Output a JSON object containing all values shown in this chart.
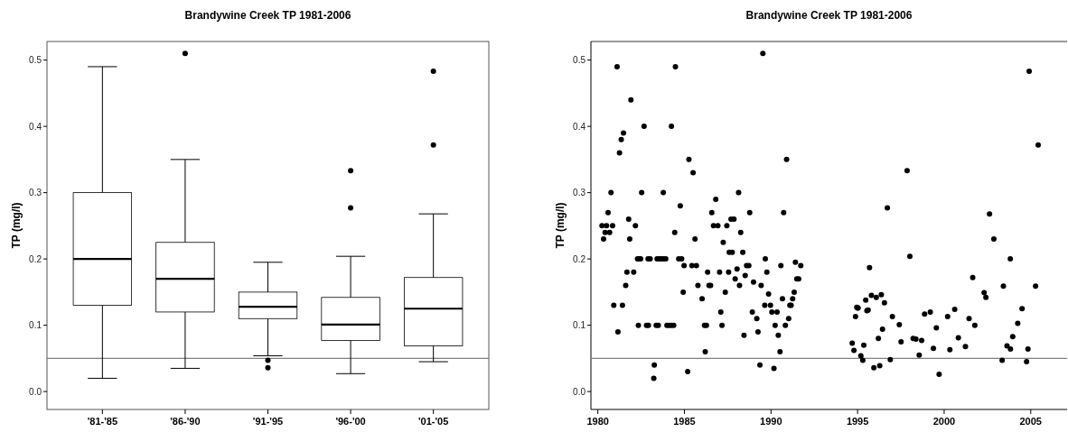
{
  "chart_data": [
    {
      "type": "box",
      "title": "Brandywine Creek TP 1981-2006",
      "ylabel": "TP (mg/l)",
      "categories": [
        "'81-'85",
        "'86-'90",
        "'91-'95",
        "'96-'00",
        "'01-'05"
      ],
      "boxes": [
        {
          "low": 0.02,
          "q1": 0.13,
          "median": 0.2,
          "q3": 0.3,
          "high": 0.49
        },
        {
          "low": 0.035,
          "q1": 0.12,
          "median": 0.17,
          "q3": 0.225,
          "high": 0.35,
          "outliers": [
            0.51
          ]
        },
        {
          "low": 0.054,
          "q1": 0.11,
          "median": 0.128,
          "q3": 0.15,
          "high": 0.195,
          "outliers": [
            0.047,
            0.036
          ]
        },
        {
          "low": 0.027,
          "q1": 0.077,
          "median": 0.101,
          "q3": 0.142,
          "high": 0.204,
          "outliers": [
            0.277,
            0.333
          ]
        },
        {
          "low": 0.045,
          "q1": 0.069,
          "median": 0.125,
          "q3": 0.172,
          "high": 0.268,
          "outliers": [
            0.372,
            0.483
          ]
        }
      ],
      "ylim": [
        -0.027,
        0.528
      ],
      "yticks": [
        {
          "value": 0,
          "label": "0.0"
        },
        0.1,
        0.2,
        0.3,
        0.4,
        0.5
      ],
      "ref_lines": [
        {
          "axis": "y",
          "value": 0.05,
          "color": "#808080"
        }
      ]
    },
    {
      "type": "scatter",
      "title": "Brandywine Creek TP 1981-2006",
      "ylabel": "TP (mg/l)",
      "marker": "circle",
      "x": [
        1980.24,
        1980.33,
        1980.42,
        1980.5,
        1980.59,
        1980.68,
        1980.76,
        1980.85,
        1980.92,
        1981.11,
        1981.16,
        1981.25,
        1981.35,
        1981.42,
        1981.48,
        1981.61,
        1981.68,
        1981.78,
        1981.84,
        1981.91,
        1982.07,
        1982.17,
        1982.29,
        1982.34,
        1982.38,
        1982.47,
        1982.53,
        1982.67,
        1982.81,
        1982.9,
        1982.92,
        1983.02,
        1983.23,
        1983.26,
        1983.37,
        1983.42,
        1983.49,
        1983.54,
        1983.66,
        1983.78,
        1983.78,
        1983.92,
        1983.99,
        1984.11,
        1984.24,
        1984.25,
        1984.38,
        1984.44,
        1984.48,
        1984.67,
        1984.76,
        1984.84,
        1984.93,
        1984.98,
        1985.19,
        1985.26,
        1985.43,
        1985.5,
        1985.61,
        1985.69,
        1985.78,
        1986.02,
        1986.16,
        1986.2,
        1986.27,
        1986.34,
        1986.42,
        1986.51,
        1986.58,
        1986.68,
        1986.81,
        1986.93,
        1987.03,
        1987.1,
        1987.17,
        1987.24,
        1987.36,
        1987.45,
        1987.55,
        1987.59,
        1987.69,
        1987.76,
        1987.86,
        1987.93,
        1988.04,
        1988.13,
        1988.18,
        1988.25,
        1988.37,
        1988.44,
        1988.51,
        1988.59,
        1988.72,
        1988.77,
        1988.92,
        1988.99,
        1989.18,
        1989.25,
        1989.36,
        1989.43,
        1989.53,
        1989.64,
        1989.67,
        1989.76,
        1989.86,
        1989.97,
        1990.05,
        1990.17,
        1990.24,
        1990.35,
        1990.42,
        1990.52,
        1990.57,
        1990.66,
        1990.73,
        1990.83,
        1990.9,
        1991.02,
        1991.09,
        1991.16,
        1991.25,
        1991.34,
        1991.41,
        1991.49,
        1991.6,
        1991.72,
        1994.69,
        1994.79,
        1994.88,
        1994.95,
        1995.0,
        1995.03,
        1995.19,
        1995.3,
        1995.36,
        1995.47,
        1995.54,
        1995.61,
        1995.69,
        1995.8,
        1995.94,
        1996.08,
        1996.2,
        1996.28,
        1996.37,
        1996.44,
        1996.55,
        1996.72,
        1996.89,
        1997.01,
        1997.41,
        1997.51,
        1997.86,
        1998.02,
        1998.21,
        1998.37,
        1998.56,
        1998.7,
        1998.87,
        1999.2,
        1999.38,
        1999.55,
        1999.71,
        2000.2,
        2000.33,
        2000.61,
        2000.82,
        2001.23,
        2001.44,
        2001.65,
        2001.77,
        2002.31,
        2002.41,
        2002.62,
        2002.87,
        2003.35,
        2003.42,
        2003.63,
        2003.82,
        2003.83,
        2003.96,
        2004.25,
        2004.5,
        2004.76,
        2004.84,
        2004.91,
        2005.28,
        2005.43
      ],
      "series": [
        {
          "color": "#000000",
          "values": [
            0.25,
            0.23,
            0.24,
            0.25,
            0.27,
            0.24,
            0.3,
            0.25,
            0.13,
            0.49,
            0.09,
            0.36,
            0.38,
            0.13,
            0.39,
            0.16,
            0.18,
            0.26,
            0.23,
            0.44,
            0.18,
            0.25,
            0.2,
            0.1,
            0.2,
            0.2,
            0.3,
            0.4,
            0.1,
            0.2,
            0.1,
            0.2,
            0.02,
            0.04,
            0.1,
            0.2,
            0.1,
            0.2,
            0.2,
            0.2,
            0.3,
            0.2,
            0.1,
            0.1,
            0.1,
            0.4,
            0.1,
            0.24,
            0.49,
            0.2,
            0.28,
            0.2,
            0.15,
            0.19,
            0.03,
            0.35,
            0.19,
            0.33,
            0.23,
            0.19,
            0.16,
            0.14,
            0.1,
            0.06,
            0.1,
            0.18,
            0.16,
            0.16,
            0.27,
            0.25,
            0.29,
            0.25,
            0.18,
            0.12,
            0.1,
            0.225,
            0.15,
            0.25,
            0.18,
            0.21,
            0.26,
            0.21,
            0.26,
            0.17,
            0.185,
            0.3,
            0.16,
            0.24,
            0.21,
            0.085,
            0.175,
            0.19,
            0.19,
            0.27,
            0.12,
            0.165,
            0.11,
            0.09,
            0.04,
            0.16,
            0.51,
            0.13,
            0.2,
            0.18,
            0.147,
            0.13,
            0.12,
            0.035,
            0.1,
            0.12,
            0.085,
            0.06,
            0.19,
            0.14,
            0.27,
            0.1,
            0.35,
            0.11,
            0.13,
            0.13,
            0.14,
            0.15,
            0.195,
            0.17,
            0.17,
            0.19,
            0.073,
            0.062,
            0.113,
            0.127,
            0.126,
            0.126,
            0.054,
            0.047,
            0.07,
            0.138,
            0.122,
            0.123,
            0.187,
            0.145,
            0.036,
            0.142,
            0.08,
            0.039,
            0.146,
            0.094,
            0.134,
            0.277,
            0.048,
            0.113,
            0.101,
            0.075,
            0.333,
            0.204,
            0.08,
            0.079,
            0.055,
            0.077,
            0.117,
            0.12,
            0.065,
            0.096,
            0.026,
            0.113,
            0.063,
            0.124,
            0.081,
            0.068,
            0.11,
            0.172,
            0.1,
            0.149,
            0.142,
            0.268,
            0.23,
            0.047,
            0.159,
            0.069,
            0.2,
            0.064,
            0.083,
            0.103,
            0.125,
            0.045,
            0.064,
            0.483,
            0.159,
            0.372
          ]
        }
      ],
      "xlim": [
        1979.6,
        2007.1
      ],
      "xticks": [
        1980,
        1985,
        1990,
        1995,
        2000,
        2005
      ],
      "ylim": [
        -0.027,
        0.528
      ],
      "yticks": [
        {
          "value": 0,
          "label": "0.0"
        },
        0.1,
        0.2,
        0.3,
        0.4,
        0.5
      ],
      "ref_lines": [
        {
          "axis": "y",
          "value": 0.05,
          "color": "#808080"
        }
      ]
    }
  ]
}
